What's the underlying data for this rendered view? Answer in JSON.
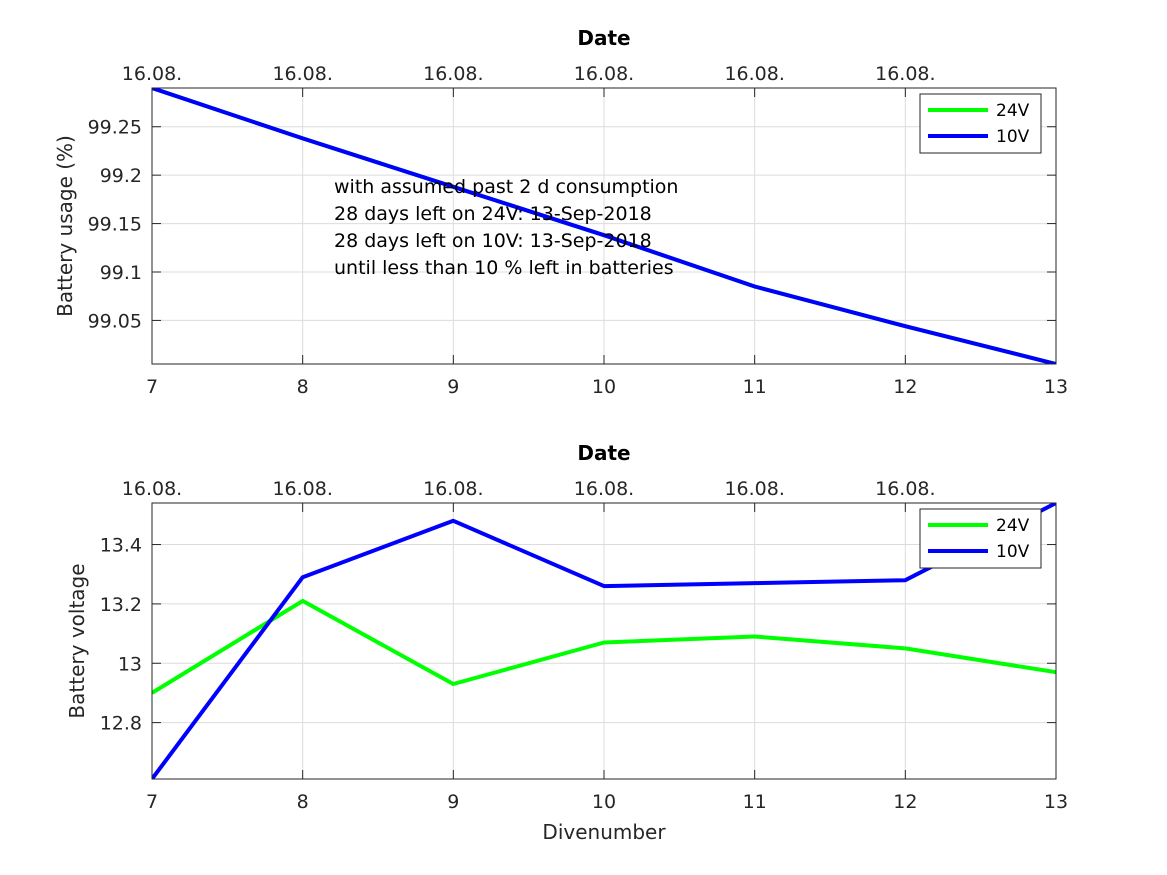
{
  "chart_data": [
    {
      "type": "line",
      "title": "Date",
      "xlabel": "",
      "ylabel": "Battery usage (%)",
      "x": [
        7,
        8,
        9,
        10,
        11,
        12,
        13
      ],
      "xlim": [
        7,
        13
      ],
      "ylim": [
        99.005,
        99.29
      ],
      "xticks": [
        "7",
        "8",
        "9",
        "10",
        "11",
        "12",
        "13"
      ],
      "top_ticks": [
        "16.08.",
        "16.08.",
        "16.08.",
        "16.08.",
        "16.08.",
        "16.08."
      ],
      "yticks": [
        99.05,
        99.1,
        99.15,
        99.2,
        99.25
      ],
      "ytick_labels": [
        "99.05",
        "99.1",
        "99.15",
        "99.2",
        "99.25"
      ],
      "grid": true,
      "legend_position": "top-right",
      "series": [
        {
          "name": "24V",
          "color": "#00ff00",
          "values": [
            99.29,
            99.238,
            99.188,
            99.138,
            99.085,
            99.044,
            99.005
          ]
        },
        {
          "name": "10V",
          "color": "#0000ff",
          "values": [
            99.29,
            99.238,
            99.188,
            99.138,
            99.085,
            99.044,
            99.005
          ]
        }
      ],
      "annotation": [
        "with assumed past 2 d consumption",
        "28 days left on 24V: 13-Sep-2018",
        "28 days left on 10V: 13-Sep-2018",
        "until less than 10 % left in batteries"
      ]
    },
    {
      "type": "line",
      "title": "Date",
      "xlabel": "Divenumber",
      "ylabel": "Battery voltage",
      "x": [
        7,
        8,
        9,
        10,
        11,
        12,
        13
      ],
      "xlim": [
        7,
        13
      ],
      "ylim": [
        12.61,
        13.54
      ],
      "xticks": [
        "7",
        "8",
        "9",
        "10",
        "11",
        "12",
        "13"
      ],
      "top_ticks": [
        "16.08.",
        "16.08.",
        "16.08.",
        "16.08.",
        "16.08.",
        "16.08."
      ],
      "yticks": [
        12.8,
        13,
        13.2,
        13.4
      ],
      "ytick_labels": [
        "12.8",
        "13",
        "13.2",
        "13.4"
      ],
      "grid": true,
      "legend_position": "top-right",
      "series": [
        {
          "name": "24V",
          "color": "#00ff00",
          "values": [
            12.9,
            13.21,
            12.93,
            13.07,
            13.09,
            13.05,
            12.97
          ]
        },
        {
          "name": "10V",
          "color": "#0000ff",
          "values": [
            12.61,
            13.29,
            13.48,
            13.26,
            13.27,
            13.28,
            13.54
          ]
        }
      ]
    }
  ]
}
